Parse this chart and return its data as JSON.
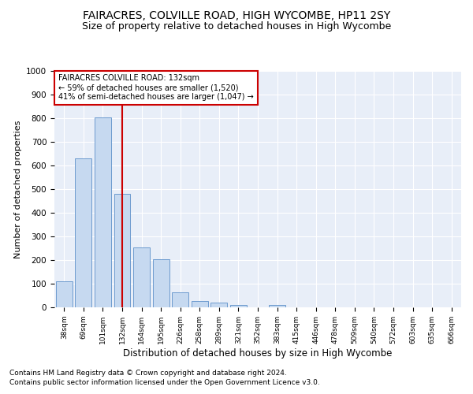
{
  "title": "FAIRACRES, COLVILLE ROAD, HIGH WYCOMBE, HP11 2SY",
  "subtitle": "Size of property relative to detached houses in High Wycombe",
  "xlabel": "Distribution of detached houses by size in High Wycombe",
  "ylabel": "Number of detached properties",
  "footnote1": "Contains HM Land Registry data © Crown copyright and database right 2024.",
  "footnote2": "Contains public sector information licensed under the Open Government Licence v3.0.",
  "categories": [
    "38sqm",
    "69sqm",
    "101sqm",
    "132sqm",
    "164sqm",
    "195sqm",
    "226sqm",
    "258sqm",
    "289sqm",
    "321sqm",
    "352sqm",
    "383sqm",
    "415sqm",
    "446sqm",
    "478sqm",
    "509sqm",
    "540sqm",
    "572sqm",
    "603sqm",
    "635sqm",
    "666sqm"
  ],
  "values": [
    110,
    630,
    805,
    480,
    253,
    205,
    63,
    28,
    19,
    10,
    0,
    10,
    0,
    0,
    0,
    0,
    0,
    0,
    0,
    0,
    0
  ],
  "bar_color": "#c6d9f0",
  "bar_edge_color": "#5b8fc8",
  "vline_x": 3,
  "vline_color": "#cc0000",
  "annotation_text": "FAIRACRES COLVILLE ROAD: 132sqm\n← 59% of detached houses are smaller (1,520)\n41% of semi-detached houses are larger (1,047) →",
  "annotation_box_color": "#ffffff",
  "annotation_box_edge": "#cc0000",
  "ylim": [
    0,
    1000
  ],
  "yticks": [
    0,
    100,
    200,
    300,
    400,
    500,
    600,
    700,
    800,
    900,
    1000
  ],
  "background_color": "#e8eef8",
  "title_fontsize": 10,
  "subtitle_fontsize": 9,
  "xlabel_fontsize": 8.5,
  "ylabel_fontsize": 8,
  "footnote_fontsize": 6.5
}
